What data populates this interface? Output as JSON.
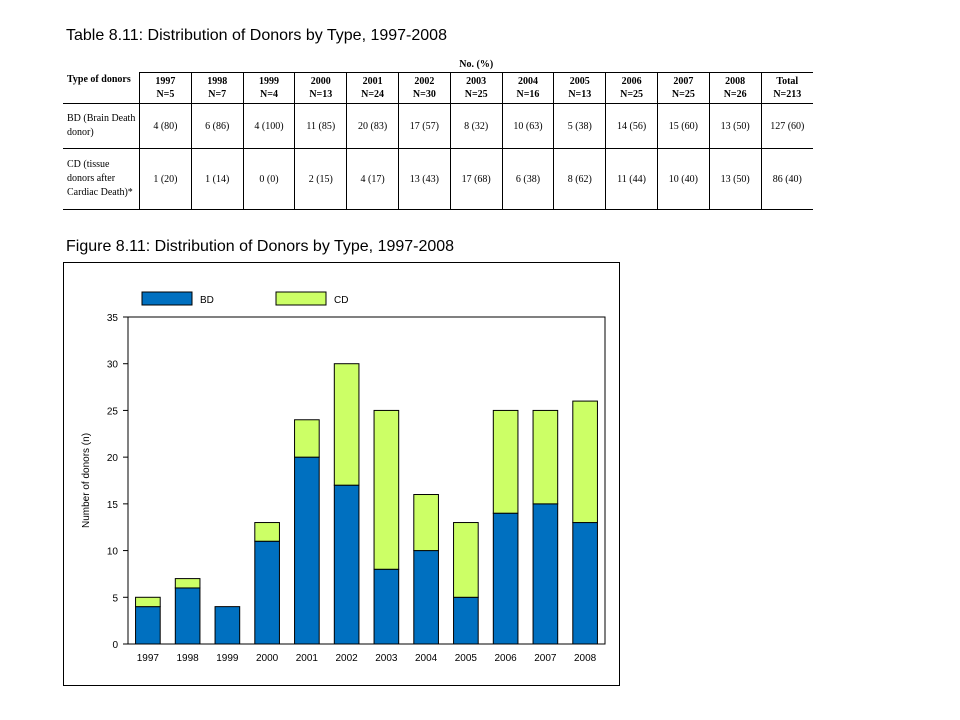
{
  "table": {
    "title": "Table 8.11: Distribution of Donors by Type, 1997-2008",
    "type_header": "Type of donors",
    "group_header": "No. (%)",
    "columns": [
      {
        "year": "1997",
        "n": "N=5"
      },
      {
        "year": "1998",
        "n": "N=7"
      },
      {
        "year": "1999",
        "n": "N=4"
      },
      {
        "year": "2000",
        "n": "N=13"
      },
      {
        "year": "2001",
        "n": "N=24"
      },
      {
        "year": "2002",
        "n": "N=30"
      },
      {
        "year": "2003",
        "n": "N=25"
      },
      {
        "year": "2004",
        "n": "N=16"
      },
      {
        "year": "2005",
        "n": "N=13"
      },
      {
        "year": "2006",
        "n": "N=25"
      },
      {
        "year": "2007",
        "n": "N=25"
      },
      {
        "year": "2008",
        "n": "N=26"
      },
      {
        "year": "Total",
        "n": "N=213"
      }
    ],
    "rows": [
      {
        "label": "BD (Brain Death donor)",
        "cells": [
          "4 (80)",
          "6 (86)",
          "4 (100)",
          "11 (85)",
          "20 (83)",
          "17 (57)",
          "8 (32)",
          "10 (63)",
          "5 (38)",
          "14 (56)",
          "15 (60)",
          "13 (50)",
          "127 (60)"
        ]
      },
      {
        "label": "CD (tissue donors after Cardiac Death)*",
        "cells": [
          "1 (20)",
          "1 (14)",
          "0 (0)",
          "2 (15)",
          "4 (17)",
          "13 (43)",
          "17 (68)",
          "6 (38)",
          "8 (62)",
          "11 (44)",
          "10 (40)",
          "13 (50)",
          "86 (40)"
        ]
      }
    ]
  },
  "figure": {
    "title": "Figure 8.11: Distribution of Donors by Type, 1997-2008"
  },
  "chart_data": {
    "type": "bar",
    "stacked": true,
    "categories": [
      "1997",
      "1998",
      "1999",
      "2000",
      "2001",
      "2002",
      "2003",
      "2004",
      "2005",
      "2006",
      "2007",
      "2008"
    ],
    "series": [
      {
        "name": "BD",
        "color": "#0070c0",
        "values": [
          4,
          6,
          4,
          11,
          20,
          17,
          8,
          10,
          5,
          14,
          15,
          13
        ]
      },
      {
        "name": "CD",
        "color": "#ccff66",
        "values": [
          1,
          1,
          0,
          2,
          4,
          13,
          17,
          6,
          8,
          11,
          10,
          13
        ]
      }
    ],
    "ylabel": "Number of donors (n)",
    "xlabel": "",
    "ylim": [
      0,
      35
    ],
    "yticks": [
      0,
      5,
      10,
      15,
      20,
      25,
      30,
      35
    ],
    "legend_position": "top",
    "grid": false
  }
}
